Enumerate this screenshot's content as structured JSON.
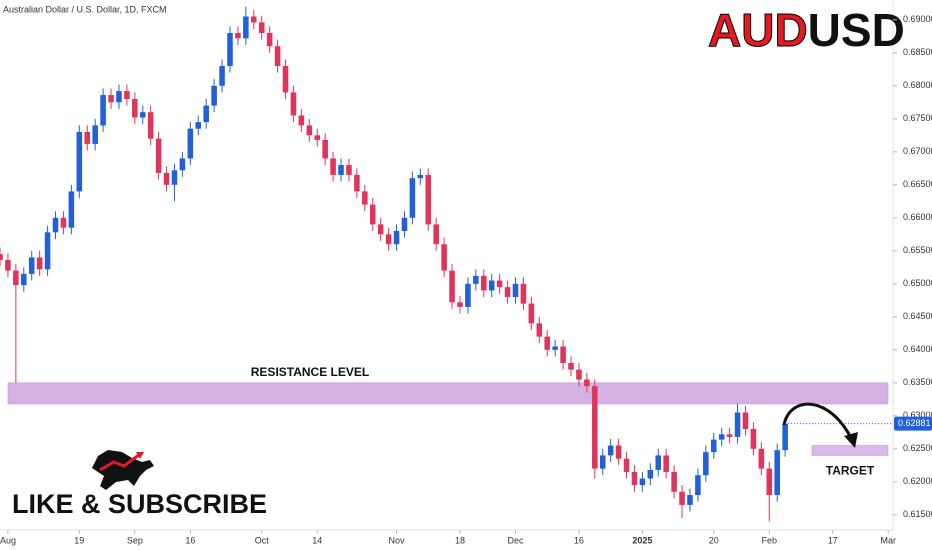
{
  "chart_data": {
    "type": "candlestick",
    "title": "Australian Dollar / U.S. Dollar, 1D, FXCM",
    "headline": [
      "AUD",
      "USD"
    ],
    "up_color": "#2160d8",
    "down_color": "#e0345a",
    "open": [
      0.6545,
      0.6536,
      0.652,
      0.6498,
      0.6515,
      0.654,
      0.6522,
      0.6578,
      0.66,
      0.6585,
      0.664,
      0.673,
      0.6712,
      0.674,
      0.6786,
      0.6775,
      0.6792,
      0.678,
      0.6752,
      0.676,
      0.672,
      0.6668,
      0.665,
      0.6672,
      0.669,
      0.6735,
      0.6745,
      0.677,
      0.68,
      0.683,
      0.688,
      0.6872,
      0.6905,
      0.6896,
      0.688,
      0.686,
      0.683,
      0.679,
      0.6755,
      0.674,
      0.6725,
      0.6718,
      0.669,
      0.6665,
      0.668,
      0.6665,
      0.664,
      0.662,
      0.659,
      0.6575,
      0.656,
      0.658,
      0.66,
      0.666,
      0.6665,
      0.659,
      0.656,
      0.652,
      0.6472,
      0.6465,
      0.65,
      0.6512,
      0.649,
      0.6505,
      0.6495,
      0.648,
      0.65,
      0.647,
      0.644,
      0.642,
      0.64,
      0.6405,
      0.638,
      0.637,
      0.6355,
      0.6345,
      0.622,
      0.624,
      0.6255,
      0.6235,
      0.6215,
      0.6195,
      0.6205,
      0.6218,
      0.624,
      0.6215,
      0.6185,
      0.6165,
      0.618,
      0.621,
      0.6245,
      0.6264,
      0.6272,
      0.6268,
      0.6305,
      0.628,
      0.625,
      0.622,
      0.618,
      0.6248
    ],
    "high": [
      0.6555,
      0.6546,
      0.653,
      0.6525,
      0.655,
      0.655,
      0.6588,
      0.661,
      0.661,
      0.665,
      0.674,
      0.674,
      0.675,
      0.6796,
      0.6796,
      0.6802,
      0.6802,
      0.679,
      0.677,
      0.677,
      0.673,
      0.6678,
      0.6682,
      0.67,
      0.6745,
      0.6755,
      0.678,
      0.681,
      0.684,
      0.689,
      0.689,
      0.692,
      0.6915,
      0.6906,
      0.689,
      0.687,
      0.684,
      0.68,
      0.6765,
      0.675,
      0.6735,
      0.6728,
      0.67,
      0.669,
      0.669,
      0.6675,
      0.665,
      0.663,
      0.66,
      0.6585,
      0.659,
      0.661,
      0.667,
      0.6675,
      0.6675,
      0.66,
      0.657,
      0.653,
      0.6482,
      0.651,
      0.6522,
      0.6522,
      0.6515,
      0.6515,
      0.6505,
      0.651,
      0.651,
      0.648,
      0.645,
      0.643,
      0.6415,
      0.6415,
      0.639,
      0.638,
      0.6365,
      0.6355,
      0.625,
      0.6265,
      0.6265,
      0.6245,
      0.6225,
      0.6215,
      0.6228,
      0.625,
      0.625,
      0.6225,
      0.6195,
      0.619,
      0.622,
      0.6255,
      0.6274,
      0.6282,
      0.6282,
      0.6318,
      0.6315,
      0.629,
      0.626,
      0.623,
      0.6258,
      0.6298
    ],
    "low": [
      0.6526,
      0.651,
      0.635,
      0.6488,
      0.6505,
      0.6512,
      0.6512,
      0.6568,
      0.6575,
      0.6575,
      0.663,
      0.6702,
      0.6702,
      0.673,
      0.6765,
      0.6765,
      0.677,
      0.6742,
      0.6742,
      0.671,
      0.6658,
      0.664,
      0.6625,
      0.6662,
      0.668,
      0.6725,
      0.6735,
      0.676,
      0.679,
      0.682,
      0.6862,
      0.6862,
      0.6886,
      0.687,
      0.685,
      0.682,
      0.678,
      0.6745,
      0.673,
      0.6715,
      0.6708,
      0.668,
      0.6655,
      0.6655,
      0.6655,
      0.663,
      0.661,
      0.658,
      0.6565,
      0.655,
      0.655,
      0.657,
      0.659,
      0.665,
      0.658,
      0.655,
      0.651,
      0.6462,
      0.6455,
      0.6455,
      0.649,
      0.648,
      0.648,
      0.6485,
      0.647,
      0.647,
      0.646,
      0.643,
      0.641,
      0.639,
      0.639,
      0.637,
      0.636,
      0.6345,
      0.6335,
      0.6205,
      0.621,
      0.623,
      0.6225,
      0.6205,
      0.6185,
      0.6185,
      0.6195,
      0.6208,
      0.6205,
      0.6175,
      0.6145,
      0.6155,
      0.617,
      0.62,
      0.6235,
      0.6254,
      0.6258,
      0.6258,
      0.627,
      0.624,
      0.621,
      0.614,
      0.617,
      0.6238
    ],
    "close": [
      0.6536,
      0.652,
      0.6498,
      0.6515,
      0.654,
      0.6522,
      0.6578,
      0.66,
      0.6585,
      0.664,
      0.673,
      0.6712,
      0.674,
      0.6786,
      0.6775,
      0.6792,
      0.678,
      0.6752,
      0.676,
      0.672,
      0.6668,
      0.665,
      0.6672,
      0.669,
      0.6735,
      0.6745,
      0.677,
      0.68,
      0.683,
      0.688,
      0.6872,
      0.6905,
      0.6896,
      0.688,
      0.686,
      0.683,
      0.679,
      0.6755,
      0.674,
      0.6725,
      0.6718,
      0.669,
      0.6665,
      0.668,
      0.6665,
      0.664,
      0.662,
      0.659,
      0.6575,
      0.656,
      0.658,
      0.66,
      0.666,
      0.6665,
      0.659,
      0.656,
      0.652,
      0.6472,
      0.6465,
      0.65,
      0.6512,
      0.649,
      0.6505,
      0.6495,
      0.648,
      0.65,
      0.647,
      0.644,
      0.642,
      0.64,
      0.6405,
      0.638,
      0.637,
      0.6355,
      0.6345,
      0.622,
      0.624,
      0.6255,
      0.6235,
      0.6215,
      0.6195,
      0.6205,
      0.6218,
      0.624,
      0.6215,
      0.6185,
      0.6165,
      0.618,
      0.621,
      0.6245,
      0.6264,
      0.6272,
      0.6268,
      0.6305,
      0.628,
      0.625,
      0.622,
      0.618,
      0.6248,
      0.62881
    ],
    "xlim": [
      0,
      112.6
    ],
    "xticks": [
      {
        "value": 1,
        "label": "Aug"
      },
      {
        "value": 10,
        "label": "19"
      },
      {
        "value": 17,
        "label": "Sep"
      },
      {
        "value": 24,
        "label": "16"
      },
      {
        "value": 33,
        "label": "Oct"
      },
      {
        "value": 40,
        "label": "14"
      },
      {
        "value": 50,
        "label": "Nov"
      },
      {
        "value": 58,
        "label": "18"
      },
      {
        "value": 65,
        "label": "Dec"
      },
      {
        "value": 73,
        "label": "16"
      },
      {
        "value": 81,
        "label": "2025"
      },
      {
        "value": 90,
        "label": "20"
      },
      {
        "value": 97,
        "label": "Feb"
      },
      {
        "value": 105,
        "label": "17"
      },
      {
        "value": 112,
        "label": "Mar"
      }
    ],
    "ylim": [
      0.6127,
      0.693
    ],
    "yticks": [
      {
        "value": 0.615,
        "label": "0.61500"
      },
      {
        "value": 0.62,
        "label": "0.62000"
      },
      {
        "value": 0.625,
        "label": "0.62500"
      },
      {
        "value": 0.63,
        "label": "0.63000"
      },
      {
        "value": 0.635,
        "label": "0.63500"
      },
      {
        "value": 0.64,
        "label": "0.64000"
      },
      {
        "value": 0.645,
        "label": "0.64500"
      },
      {
        "value": 0.65,
        "label": "0.65000"
      },
      {
        "value": 0.655,
        "label": "0.65500"
      },
      {
        "value": 0.66,
        "label": "0.66000"
      },
      {
        "value": 0.665,
        "label": "0.66500"
      },
      {
        "value": 0.67,
        "label": "0.67000"
      },
      {
        "value": 0.675,
        "label": "0.67500"
      },
      {
        "value": 0.68,
        "label": "0.68000"
      },
      {
        "value": 0.685,
        "label": "0.68500"
      },
      {
        "value": 0.69,
        "label": "0.69000"
      }
    ],
    "zones": [
      {
        "label": "RESISTANCE LEVEL",
        "range": [
          0.6318,
          0.635
        ],
        "color": "#cfa5e0"
      },
      {
        "label": "TARGET",
        "range": [
          0.624,
          0.6255
        ],
        "color": "#d4aee6"
      }
    ],
    "call_to_action": "LIKE & SUBSCRIBE"
  }
}
